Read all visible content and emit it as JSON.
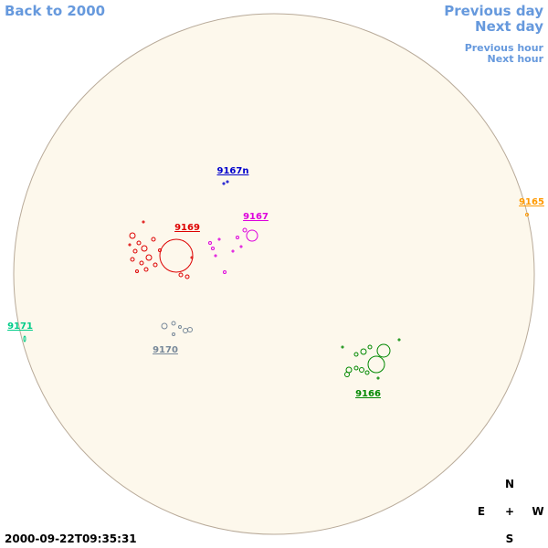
{
  "navigation": {
    "back": "Back to 2000",
    "previous_day": "Previous day",
    "next_day": "Next day",
    "previous_hour": "Previous hour",
    "next_hour": "Next hour"
  },
  "regions": [
    {
      "label": "9167n",
      "color": "#0000cc"
    },
    {
      "label": "9165",
      "color": "#ff9900"
    },
    {
      "label": "9167",
      "color": "#dd00dd"
    },
    {
      "label": "9169",
      "color": "#dd0000"
    },
    {
      "label": "9171",
      "color": "#00cc88"
    },
    {
      "label": "9170",
      "color": "#778899"
    },
    {
      "label": "9166",
      "color": "#008800"
    }
  ],
  "timestamp": "2000-09-22T09:35:31",
  "compass": {
    "north": "N",
    "east": "E",
    "center": "+",
    "west": "W",
    "south": "S"
  }
}
